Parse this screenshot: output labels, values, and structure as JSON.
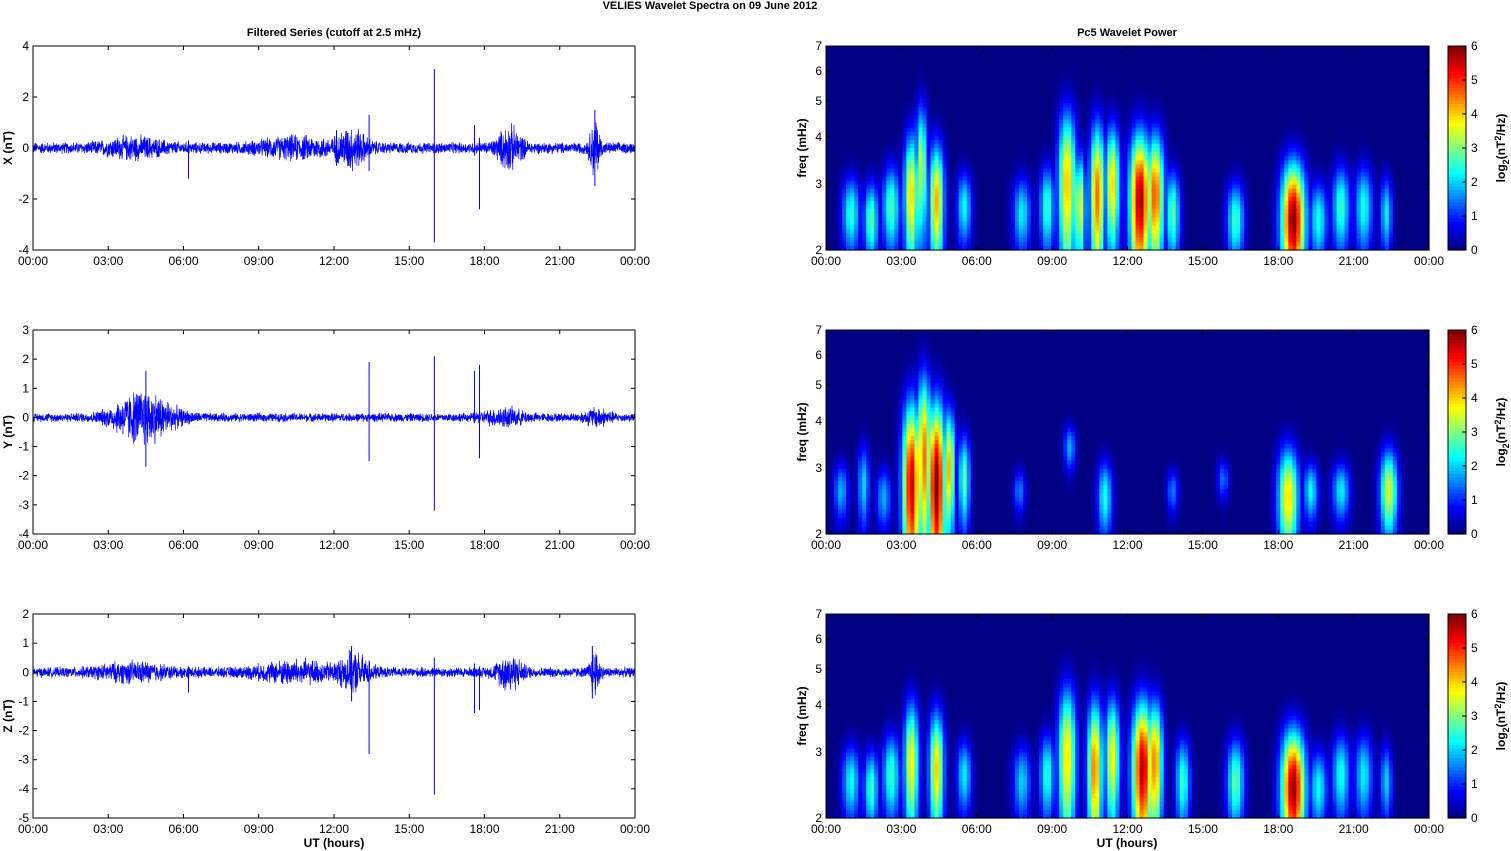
{
  "figure": {
    "title": "VELIES Wavelet Spectra on 09 June      2012",
    "left_title": "Filtered Series (cutoff at 2.5 mHz)",
    "right_title": "Pc5 Wavelet Power",
    "xlabel": "UT (hours)",
    "series_color": "#0000ff"
  },
  "chart_data": [
    {
      "type": "line",
      "name": "X",
      "ylabel": "X (nT)",
      "x_ticks": [
        "00:00",
        "03:00",
        "06:00",
        "09:00",
        "12:00",
        "15:00",
        "18:00",
        "21:00",
        "00:00"
      ],
      "xlim": [
        0,
        24
      ],
      "ylim": [
        -4,
        4
      ],
      "y_ticks": [
        -4,
        -2,
        0,
        2,
        4
      ],
      "baseline_amplitude": 0.18,
      "bursts": [
        {
          "center": 4.0,
          "width": 1.2,
          "amplitude": 0.25
        },
        {
          "center": 10.5,
          "width": 1.5,
          "amplitude": 0.25
        },
        {
          "center": 12.7,
          "width": 0.6,
          "amplitude": 0.55
        },
        {
          "center": 19.0,
          "width": 0.5,
          "amplitude": 0.6
        },
        {
          "center": 22.4,
          "width": 0.2,
          "amplitude": 0.9
        }
      ],
      "spikes": [
        {
          "t": 6.2,
          "min": -1.2,
          "max": 0.3
        },
        {
          "t": 12.1,
          "min": -0.7,
          "max": 0.7
        },
        {
          "t": 13.4,
          "min": -0.9,
          "max": 1.3
        },
        {
          "t": 16.0,
          "min": -3.7,
          "max": 3.1
        },
        {
          "t": 17.8,
          "min": -2.4,
          "max": 0.4
        },
        {
          "t": 17.6,
          "min": -0.3,
          "max": 0.9
        },
        {
          "t": 22.4,
          "min": -1.5,
          "max": 1.5
        }
      ]
    },
    {
      "type": "line",
      "name": "Y",
      "ylabel": "Y (nT)",
      "x_ticks": [
        "00:00",
        "03:00",
        "06:00",
        "09:00",
        "12:00",
        "15:00",
        "18:00",
        "21:00",
        "00:00"
      ],
      "xlim": [
        0,
        24
      ],
      "ylim": [
        -4,
        3
      ],
      "y_ticks": [
        -4,
        -3,
        -2,
        -1,
        0,
        1,
        2,
        3
      ],
      "baseline_amplitude": 0.12,
      "bursts": [
        {
          "center": 4.4,
          "width": 1.2,
          "amplitude": 0.7
        },
        {
          "center": 18.8,
          "width": 0.8,
          "amplitude": 0.2
        },
        {
          "center": 22.5,
          "width": 0.5,
          "amplitude": 0.2
        }
      ],
      "spikes": [
        {
          "t": 4.5,
          "min": -1.7,
          "max": 1.6
        },
        {
          "t": 13.4,
          "min": -1.5,
          "max": 1.9
        },
        {
          "t": 16.0,
          "min": -3.2,
          "max": 2.1
        },
        {
          "t": 17.6,
          "min": -0.2,
          "max": 1.6
        },
        {
          "t": 17.8,
          "min": -1.4,
          "max": 1.8
        }
      ]
    },
    {
      "type": "line",
      "name": "Z",
      "ylabel": "Z (nT)",
      "x_ticks": [
        "00:00",
        "03:00",
        "06:00",
        "09:00",
        "12:00",
        "15:00",
        "18:00",
        "21:00",
        "00:00"
      ],
      "xlim": [
        0,
        24
      ],
      "ylim": [
        -5,
        2
      ],
      "y_ticks": [
        -5,
        -4,
        -3,
        -2,
        -1,
        0,
        1,
        2
      ],
      "baseline_amplitude": 0.14,
      "bursts": [
        {
          "center": 4.0,
          "width": 1.4,
          "amplitude": 0.2
        },
        {
          "center": 10.5,
          "width": 1.6,
          "amplitude": 0.25
        },
        {
          "center": 12.8,
          "width": 0.6,
          "amplitude": 0.45
        },
        {
          "center": 19.0,
          "width": 0.5,
          "amplitude": 0.45
        },
        {
          "center": 22.4,
          "width": 0.2,
          "amplitude": 0.6
        }
      ],
      "spikes": [
        {
          "t": 6.2,
          "min": -0.7,
          "max": 0.2
        },
        {
          "t": 12.7,
          "min": -1.0,
          "max": 0.9
        },
        {
          "t": 13.4,
          "min": -2.8,
          "max": 0.4
        },
        {
          "t": 16.0,
          "min": -4.2,
          "max": 0.5
        },
        {
          "t": 17.6,
          "min": -1.4,
          "max": 0.3
        },
        {
          "t": 17.8,
          "min": -1.3,
          "max": 0.2
        },
        {
          "t": 22.3,
          "min": -0.9,
          "max": 0.9
        }
      ]
    },
    {
      "type": "heatmap",
      "name": "X wavelet power",
      "ylabel": "freq (mHz)",
      "colorbar_label": "log2(nT2/Hz)",
      "colorbar_label_main": "log",
      "colorbar_label_sub": "2",
      "colorbar_label_open": "(nT",
      "colorbar_label_sup": "2",
      "colorbar_label_close": "/Hz)",
      "x_ticks": [
        "00:00",
        "03:00",
        "06:00",
        "09:00",
        "12:00",
        "15:00",
        "18:00",
        "21:00",
        "00:00"
      ],
      "xlim": [
        0,
        24
      ],
      "ylim": [
        2,
        7
      ],
      "y_scale": "log",
      "y_ticks": [
        2,
        3,
        4,
        5,
        6,
        7
      ],
      "zlim": [
        0,
        6
      ],
      "colorbar_ticks": [
        0,
        1,
        2,
        3,
        4,
        5,
        6
      ],
      "colormap": "jet",
      "blobs": [
        {
          "t": 1.0,
          "f": 2.5,
          "dt": 0.3,
          "df": 0.5,
          "v": 2.5
        },
        {
          "t": 1.8,
          "f": 2.4,
          "dt": 0.25,
          "df": 0.5,
          "v": 2.8
        },
        {
          "t": 2.6,
          "f": 2.6,
          "dt": 0.3,
          "df": 0.6,
          "v": 2.7
        },
        {
          "t": 3.4,
          "f": 2.8,
          "dt": 0.25,
          "df": 1.0,
          "v": 4.0
        },
        {
          "t": 3.8,
          "f": 3.3,
          "dt": 0.2,
          "df": 1.2,
          "v": 3.4
        },
        {
          "t": 4.4,
          "f": 2.7,
          "dt": 0.25,
          "df": 0.9,
          "v": 4.2
        },
        {
          "t": 5.5,
          "f": 2.6,
          "dt": 0.25,
          "df": 0.5,
          "v": 2.3
        },
        {
          "t": 7.8,
          "f": 2.5,
          "dt": 0.3,
          "df": 0.5,
          "v": 2.2
        },
        {
          "t": 8.8,
          "f": 2.6,
          "dt": 0.25,
          "df": 0.6,
          "v": 2.6
        },
        {
          "t": 9.6,
          "f": 3.0,
          "dt": 0.3,
          "df": 1.3,
          "v": 4.2
        },
        {
          "t": 10.1,
          "f": 2.6,
          "dt": 0.2,
          "df": 0.8,
          "v": 3.6
        },
        {
          "t": 10.8,
          "f": 2.8,
          "dt": 0.25,
          "df": 1.2,
          "v": 4.6
        },
        {
          "t": 11.4,
          "f": 3.0,
          "dt": 0.25,
          "df": 1.0,
          "v": 4.0
        },
        {
          "t": 12.5,
          "f": 2.7,
          "dt": 0.35,
          "df": 1.1,
          "v": 5.8
        },
        {
          "t": 13.1,
          "f": 2.8,
          "dt": 0.3,
          "df": 1.0,
          "v": 4.8
        },
        {
          "t": 13.8,
          "f": 2.5,
          "dt": 0.25,
          "df": 0.6,
          "v": 2.8
        },
        {
          "t": 16.3,
          "f": 2.4,
          "dt": 0.3,
          "df": 0.5,
          "v": 2.6
        },
        {
          "t": 18.6,
          "f": 2.4,
          "dt": 0.4,
          "df": 0.8,
          "v": 6.0
        },
        {
          "t": 19.6,
          "f": 2.4,
          "dt": 0.3,
          "df": 0.5,
          "v": 2.4
        },
        {
          "t": 20.5,
          "f": 2.6,
          "dt": 0.3,
          "df": 0.6,
          "v": 2.6
        },
        {
          "t": 21.4,
          "f": 2.6,
          "dt": 0.3,
          "df": 0.6,
          "v": 2.4
        },
        {
          "t": 22.3,
          "f": 2.5,
          "dt": 0.2,
          "df": 0.5,
          "v": 2.2
        }
      ]
    },
    {
      "type": "heatmap",
      "name": "Y wavelet power",
      "ylabel": "freq (mHz)",
      "colorbar_label": "log2(nT2/Hz)",
      "colorbar_label_main": "log",
      "colorbar_label_sub": "2",
      "colorbar_label_open": "(nT",
      "colorbar_label_sup": "2",
      "colorbar_label_close": "/Hz)",
      "x_ticks": [
        "00:00",
        "03:00",
        "06:00",
        "09:00",
        "12:00",
        "15:00",
        "18:00",
        "21:00",
        "00:00"
      ],
      "xlim": [
        0,
        24
      ],
      "ylim": [
        2,
        7
      ],
      "y_scale": "log",
      "y_ticks": [
        2,
        3,
        4,
        5,
        6,
        7
      ],
      "zlim": [
        0,
        6
      ],
      "colorbar_ticks": [
        0,
        1,
        2,
        3,
        4,
        5,
        6
      ],
      "colormap": "jet",
      "blobs": [
        {
          "t": 0.6,
          "f": 2.6,
          "dt": 0.25,
          "df": 0.4,
          "v": 1.8
        },
        {
          "t": 1.5,
          "f": 2.7,
          "dt": 0.2,
          "df": 0.6,
          "v": 2.0
        },
        {
          "t": 2.3,
          "f": 2.5,
          "dt": 0.25,
          "df": 0.4,
          "v": 1.8
        },
        {
          "t": 3.4,
          "f": 2.7,
          "dt": 0.3,
          "df": 1.4,
          "v": 5.6
        },
        {
          "t": 3.9,
          "f": 3.2,
          "dt": 0.25,
          "df": 1.6,
          "v": 4.6
        },
        {
          "t": 4.4,
          "f": 2.7,
          "dt": 0.3,
          "df": 1.4,
          "v": 6.0
        },
        {
          "t": 4.9,
          "f": 3.0,
          "dt": 0.2,
          "df": 1.0,
          "v": 4.2
        },
        {
          "t": 5.5,
          "f": 2.8,
          "dt": 0.2,
          "df": 0.7,
          "v": 2.8
        },
        {
          "t": 7.7,
          "f": 2.6,
          "dt": 0.2,
          "df": 0.3,
          "v": 1.5
        },
        {
          "t": 9.7,
          "f": 3.4,
          "dt": 0.2,
          "df": 0.4,
          "v": 1.8
        },
        {
          "t": 11.1,
          "f": 2.5,
          "dt": 0.25,
          "df": 0.5,
          "v": 2.4
        },
        {
          "t": 13.8,
          "f": 2.6,
          "dt": 0.2,
          "df": 0.3,
          "v": 1.5
        },
        {
          "t": 15.8,
          "f": 2.8,
          "dt": 0.2,
          "df": 0.3,
          "v": 1.4
        },
        {
          "t": 18.4,
          "f": 2.5,
          "dt": 0.35,
          "df": 0.7,
          "v": 4.0
        },
        {
          "t": 19.3,
          "f": 2.6,
          "dt": 0.25,
          "df": 0.4,
          "v": 2.3
        },
        {
          "t": 20.5,
          "f": 2.6,
          "dt": 0.3,
          "df": 0.4,
          "v": 2.2
        },
        {
          "t": 22.4,
          "f": 2.6,
          "dt": 0.3,
          "df": 0.6,
          "v": 3.6
        }
      ]
    },
    {
      "type": "heatmap",
      "name": "Z wavelet power",
      "ylabel": "freq (mHz)",
      "colorbar_label": "log2(nT2/Hz)",
      "colorbar_label_main": "log",
      "colorbar_label_sub": "2",
      "colorbar_label_open": "(nT",
      "colorbar_label_sup": "2",
      "colorbar_label_close": "/Hz)",
      "x_ticks": [
        "00:00",
        "03:00",
        "06:00",
        "09:00",
        "12:00",
        "15:00",
        "18:00",
        "21:00",
        "00:00"
      ],
      "xlim": [
        0,
        24
      ],
      "ylim": [
        2,
        7
      ],
      "y_scale": "log",
      "y_ticks": [
        2,
        3,
        4,
        5,
        6,
        7
      ],
      "zlim": [
        0,
        6
      ],
      "colorbar_ticks": [
        0,
        1,
        2,
        3,
        4,
        5,
        6
      ],
      "colormap": "jet",
      "blobs": [
        {
          "t": 1.0,
          "f": 2.5,
          "dt": 0.3,
          "df": 0.5,
          "v": 2.3
        },
        {
          "t": 1.8,
          "f": 2.4,
          "dt": 0.25,
          "df": 0.5,
          "v": 2.6
        },
        {
          "t": 2.6,
          "f": 2.6,
          "dt": 0.3,
          "df": 0.6,
          "v": 2.6
        },
        {
          "t": 3.4,
          "f": 2.8,
          "dt": 0.25,
          "df": 1.0,
          "v": 3.8
        },
        {
          "t": 4.4,
          "f": 2.7,
          "dt": 0.25,
          "df": 0.9,
          "v": 4.0
        },
        {
          "t": 5.5,
          "f": 2.6,
          "dt": 0.25,
          "df": 0.5,
          "v": 2.2
        },
        {
          "t": 7.8,
          "f": 2.5,
          "dt": 0.3,
          "df": 0.5,
          "v": 2.0
        },
        {
          "t": 8.8,
          "f": 2.6,
          "dt": 0.25,
          "df": 0.6,
          "v": 2.5
        },
        {
          "t": 9.6,
          "f": 2.9,
          "dt": 0.3,
          "df": 1.2,
          "v": 4.0
        },
        {
          "t": 10.7,
          "f": 2.7,
          "dt": 0.25,
          "df": 1.1,
          "v": 4.6
        },
        {
          "t": 11.4,
          "f": 2.9,
          "dt": 0.25,
          "df": 1.0,
          "v": 3.8
        },
        {
          "t": 12.6,
          "f": 2.7,
          "dt": 0.35,
          "df": 1.1,
          "v": 5.7
        },
        {
          "t": 13.1,
          "f": 2.8,
          "dt": 0.25,
          "df": 1.0,
          "v": 4.6
        },
        {
          "t": 14.2,
          "f": 2.5,
          "dt": 0.25,
          "df": 0.6,
          "v": 2.6
        },
        {
          "t": 16.3,
          "f": 2.5,
          "dt": 0.3,
          "df": 0.6,
          "v": 2.8
        },
        {
          "t": 18.6,
          "f": 2.4,
          "dt": 0.4,
          "df": 0.8,
          "v": 5.9
        },
        {
          "t": 19.6,
          "f": 2.4,
          "dt": 0.3,
          "df": 0.5,
          "v": 2.3
        },
        {
          "t": 20.5,
          "f": 2.6,
          "dt": 0.3,
          "df": 0.6,
          "v": 2.4
        },
        {
          "t": 21.4,
          "f": 2.6,
          "dt": 0.3,
          "df": 0.6,
          "v": 2.2
        },
        {
          "t": 22.3,
          "f": 2.5,
          "dt": 0.2,
          "df": 0.5,
          "v": 2.0
        }
      ]
    }
  ]
}
